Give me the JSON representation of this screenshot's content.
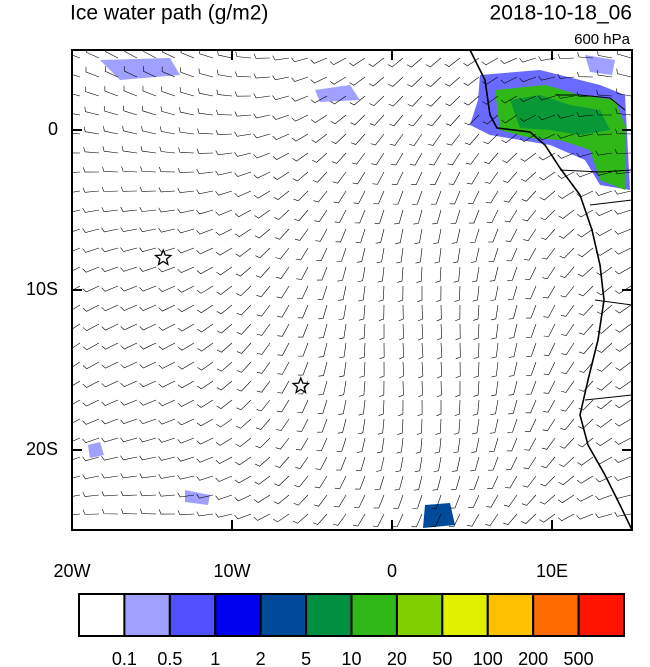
{
  "map": {
    "title": "Ice water path (g/m2)",
    "date": "2018-10-18_06",
    "level": "600 hPa",
    "xlim": [
      -20,
      15
    ],
    "ylim": [
      -25,
      5
    ],
    "xticks": [
      {
        "value": -20,
        "label": "20W"
      },
      {
        "value": -10,
        "label": "10W"
      },
      {
        "value": 0,
        "label": "0"
      },
      {
        "value": 10,
        "label": "10E"
      }
    ],
    "yticks": [
      {
        "value": 0,
        "label": "0"
      },
      {
        "value": -10,
        "label": "10S"
      },
      {
        "value": -20,
        "label": "20S"
      }
    ],
    "markers": [
      {
        "lon": -14.3,
        "lat": -8
      },
      {
        "lon": -5.7,
        "lat": -16
      }
    ],
    "colorbar": {
      "colors": [
        "#ffffff",
        "#a0a0ff",
        "#5050ff",
        "#0000ee",
        "#004a9a",
        "#009040",
        "#30b818",
        "#80d000",
        "#e0f000",
        "#ffc000",
        "#ff6a00",
        "#ff1400"
      ],
      "labels": [
        0.1,
        0.5,
        1,
        2,
        5,
        10,
        20,
        50,
        100,
        200,
        500
      ]
    }
  }
}
